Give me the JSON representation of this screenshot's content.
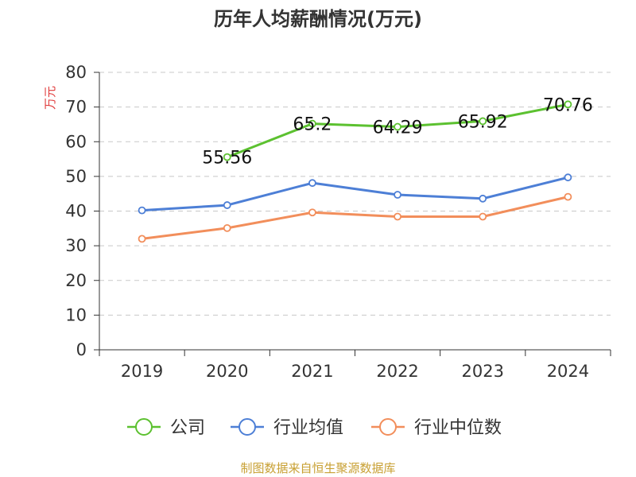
{
  "chart_data": {
    "type": "line",
    "title": "历年人均薪酬情况(万元)",
    "ylabel": "万元",
    "xlabel": "",
    "categories": [
      "2019",
      "2020",
      "2021",
      "2022",
      "2023",
      "2024"
    ],
    "ylim": [
      0,
      80
    ],
    "yticks": [
      0,
      10,
      20,
      30,
      40,
      50,
      60,
      70,
      80
    ],
    "grid": true,
    "legend_position": "bottom",
    "series": [
      {
        "name": "公司",
        "color": "#5cc130",
        "values": [
          null,
          55.56,
          65.2,
          64.29,
          65.92,
          70.76
        ],
        "labels": [
          "",
          "55.56",
          "65.2",
          "64.29",
          "65.92",
          "70.76"
        ]
      },
      {
        "name": "行业均值",
        "color": "#4d7fd6",
        "values": [
          40.2,
          41.7,
          48.1,
          44.7,
          43.6,
          49.7
        ],
        "labels": []
      },
      {
        "name": "行业中位数",
        "color": "#f28e5b",
        "values": [
          32.0,
          35.1,
          39.6,
          38.4,
          38.4,
          44.1
        ],
        "labels": []
      }
    ]
  },
  "footer": {
    "source": "制图数据来自恒生聚源数据库"
  }
}
